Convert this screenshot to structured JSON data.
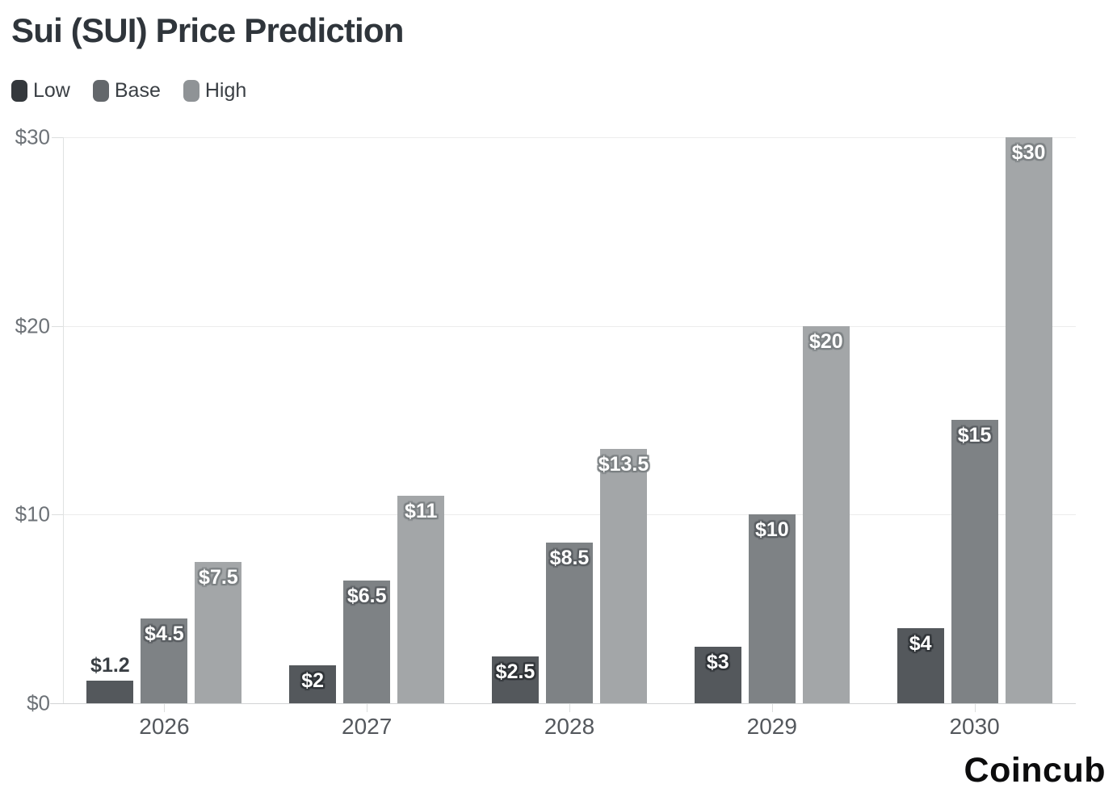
{
  "page": {
    "title": "Sui (SUI) Price Prediction",
    "brand": "Coincub"
  },
  "chart_data": {
    "type": "bar",
    "title": "Sui (SUI) Price Prediction",
    "categories": [
      "2026",
      "2027",
      "2028",
      "2029",
      "2030"
    ],
    "series": [
      {
        "name": "Low",
        "color": "#54585c",
        "legend_color": "#34383c",
        "halo_color": "#2f3337",
        "values": [
          1.2,
          2,
          2.5,
          3,
          4
        ],
        "labels": [
          "$1.2",
          "$2",
          "$2.5",
          "$3",
          "$4"
        ]
      },
      {
        "name": "Base",
        "color": "#7e8285",
        "legend_color": "#63676b",
        "halo_color": "#595d61",
        "values": [
          4.5,
          6.5,
          8.5,
          10,
          15
        ],
        "labels": [
          "$4.5",
          "$6.5",
          "$8.5",
          "$10",
          "$15"
        ]
      },
      {
        "name": "High",
        "color": "#a3a6a8",
        "legend_color": "#8f9396",
        "halo_color": "#7c8083",
        "values": [
          7.5,
          11,
          13.5,
          20,
          30
        ],
        "labels": [
          "$7.5",
          "$11",
          "$13.5",
          "$20",
          "$30"
        ]
      }
    ],
    "ylim": [
      0,
      30
    ],
    "yticks": [
      {
        "value": 0,
        "label": "$0"
      },
      {
        "value": 10,
        "label": "$10"
      },
      {
        "value": 20,
        "label": "$20"
      },
      {
        "value": 30,
        "label": "$30"
      }
    ],
    "xlabel": "",
    "ylabel": "",
    "grid": "horizontal",
    "legend_position": "top-left",
    "value_label_color_inside": "#ffffff",
    "value_label_color_outside": "#3a3f44"
  }
}
